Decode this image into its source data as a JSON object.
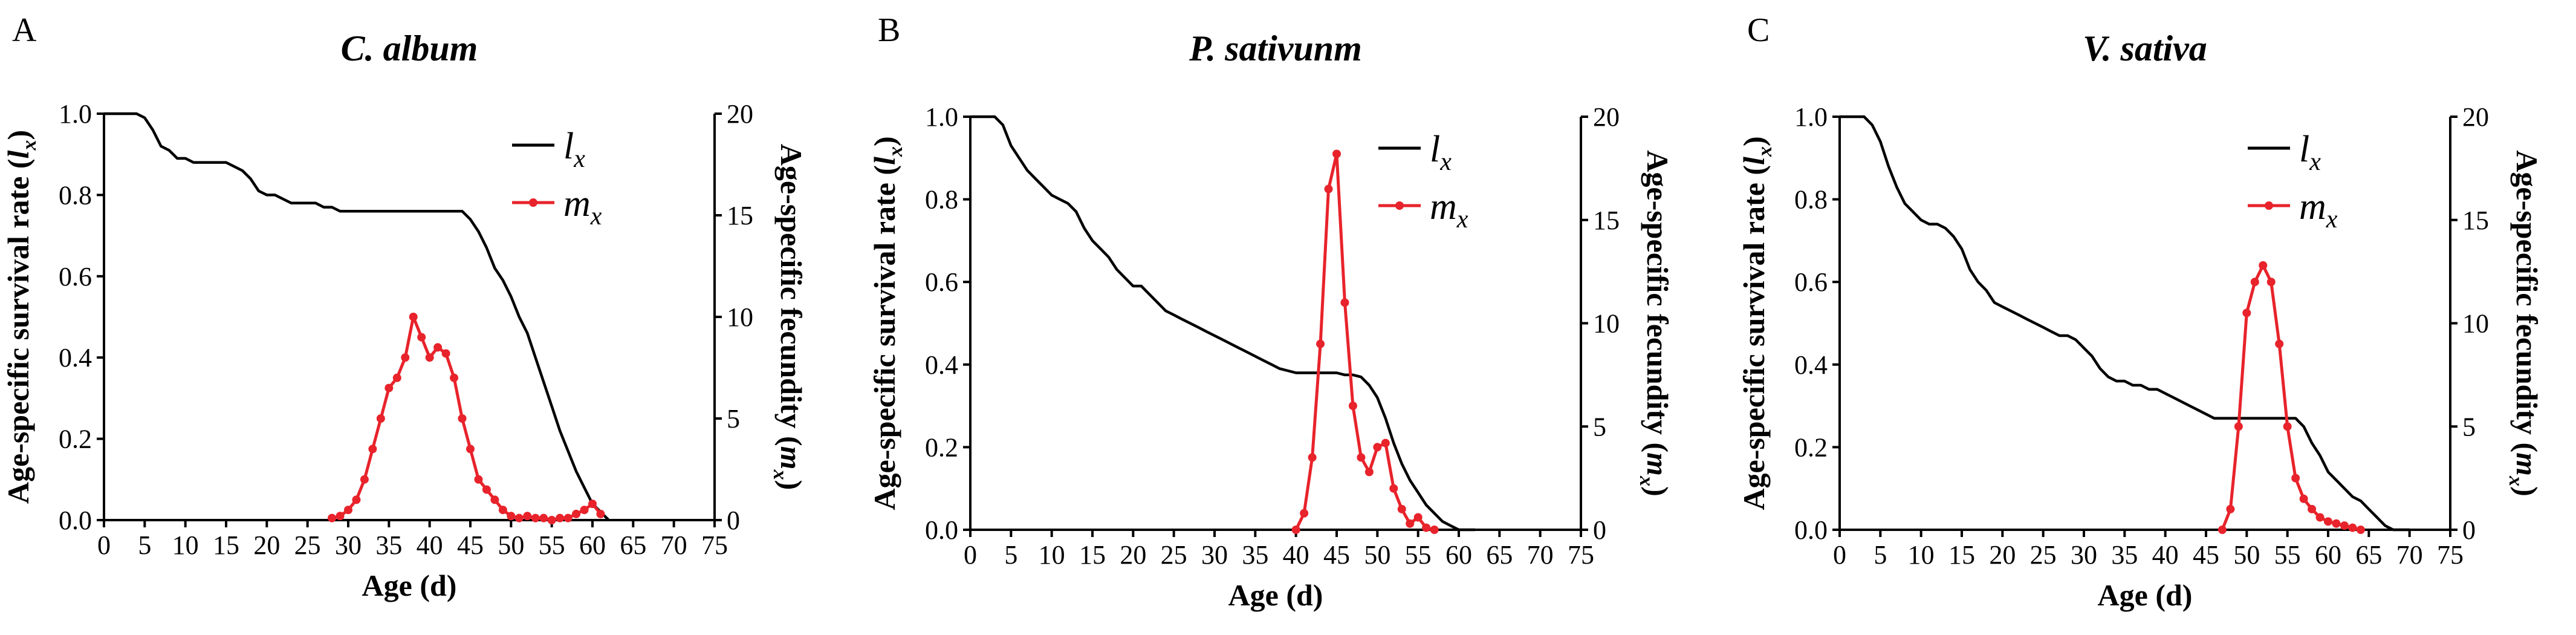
{
  "chart_data": [
    {
      "type": "line",
      "panel": "A",
      "title": "C. album",
      "xlabel": "Age (d)",
      "ylabel": "Age-specific survival rate (l",
      "ylabel_sub": "x",
      "ylabel_close": ")",
      "y2label": "Age-specific fecundity (m",
      "y2label_sub": "x",
      "y2label_close": ")",
      "xlim": [
        0,
        75
      ],
      "ylim": [
        0,
        1
      ],
      "y2lim": [
        0,
        20
      ],
      "xticks": [
        "0",
        "5",
        "10",
        "15",
        "20",
        "25",
        "30",
        "35",
        "40",
        "45",
        "50",
        "55",
        "60",
        "65",
        "70",
        "75"
      ],
      "yticks": [
        "0.0",
        "0.2",
        "0.4",
        "0.6",
        "0.8",
        "1.0"
      ],
      "y2ticks": [
        "0",
        "5",
        "10",
        "15",
        "20"
      ],
      "legend_position": "top-right",
      "series": [
        {
          "name": "l",
          "name_sub": "x",
          "axis": "left",
          "color": "#000000",
          "markers": false,
          "x": [
            0,
            4,
            5,
            6,
            7,
            8,
            9,
            10,
            11,
            12,
            13,
            14,
            15,
            16,
            17,
            18,
            19,
            20,
            21,
            22,
            23,
            24,
            25,
            26,
            27,
            28,
            29,
            30,
            35,
            40,
            44,
            45,
            46,
            47,
            48,
            49,
            50,
            51,
            52,
            53,
            54,
            55,
            56,
            57,
            58,
            59,
            60,
            61,
            62
          ],
          "y": [
            1.0,
            1.0,
            0.99,
            0.96,
            0.92,
            0.91,
            0.89,
            0.89,
            0.88,
            0.88,
            0.88,
            0.88,
            0.88,
            0.87,
            0.86,
            0.84,
            0.81,
            0.8,
            0.8,
            0.79,
            0.78,
            0.78,
            0.78,
            0.78,
            0.77,
            0.77,
            0.76,
            0.76,
            0.76,
            0.76,
            0.76,
            0.74,
            0.71,
            0.67,
            0.62,
            0.59,
            0.55,
            0.5,
            0.46,
            0.4,
            0.34,
            0.28,
            0.22,
            0.17,
            0.12,
            0.08,
            0.04,
            0.02,
            0.0
          ]
        },
        {
          "name": "m",
          "name_sub": "x",
          "axis": "right",
          "color": "#e8232b",
          "markers": true,
          "x": [
            28,
            29,
            30,
            31,
            32,
            33,
            34,
            35,
            36,
            37,
            38,
            39,
            40,
            41,
            42,
            43,
            44,
            45,
            46,
            47,
            48,
            49,
            50,
            51,
            52,
            53,
            54,
            55,
            56,
            57,
            58,
            59,
            60,
            61
          ],
          "y": [
            0.1,
            0.2,
            0.5,
            1.0,
            2.0,
            3.5,
            5.0,
            6.5,
            7.0,
            8.0,
            10.0,
            9.0,
            8.0,
            8.5,
            8.2,
            7.0,
            5.0,
            3.5,
            2.0,
            1.5,
            1.0,
            0.5,
            0.2,
            0.1,
            0.2,
            0.1,
            0.1,
            0.0,
            0.1,
            0.1,
            0.3,
            0.5,
            0.8,
            0.3
          ]
        }
      ]
    },
    {
      "type": "line",
      "panel": "B",
      "title": "P. sativunm",
      "xlabel": "Age (d)",
      "ylabel": "Age-specific survival rate (l",
      "ylabel_sub": "x",
      "ylabel_close": ")",
      "y2label": "Age-specific fecundity (m",
      "y2label_sub": "x",
      "y2label_close": ")",
      "xlim": [
        0,
        75
      ],
      "ylim": [
        0,
        1
      ],
      "y2lim": [
        0,
        20
      ],
      "xticks": [
        "0",
        "5",
        "10",
        "15",
        "20",
        "25",
        "30",
        "35",
        "40",
        "45",
        "50",
        "55",
        "60",
        "65",
        "70",
        "75"
      ],
      "yticks": [
        "0.0",
        "0.2",
        "0.4",
        "0.6",
        "0.8",
        "1.0"
      ],
      "y2ticks": [
        "0",
        "5",
        "10",
        "15",
        "20"
      ],
      "legend_position": "top-right",
      "series": [
        {
          "name": "l",
          "name_sub": "x",
          "axis": "left",
          "color": "#000000",
          "markers": false,
          "x": [
            0,
            3,
            4,
            5,
            6,
            7,
            8,
            9,
            10,
            11,
            12,
            13,
            14,
            15,
            16,
            17,
            18,
            19,
            20,
            21,
            22,
            23,
            24,
            25,
            26,
            27,
            28,
            29,
            30,
            31,
            32,
            33,
            34,
            35,
            36,
            37,
            38,
            39,
            40,
            41,
            42,
            43,
            44,
            45,
            46,
            47,
            48,
            49,
            50,
            51,
            52,
            53,
            54,
            55,
            56,
            57,
            58,
            59,
            60,
            61,
            62
          ],
          "y": [
            1.0,
            1.0,
            0.98,
            0.93,
            0.9,
            0.87,
            0.85,
            0.83,
            0.81,
            0.8,
            0.79,
            0.77,
            0.73,
            0.7,
            0.68,
            0.66,
            0.63,
            0.61,
            0.59,
            0.59,
            0.57,
            0.55,
            0.53,
            0.52,
            0.51,
            0.5,
            0.49,
            0.48,
            0.47,
            0.46,
            0.45,
            0.44,
            0.43,
            0.42,
            0.41,
            0.4,
            0.39,
            0.385,
            0.38,
            0.38,
            0.38,
            0.38,
            0.38,
            0.38,
            0.375,
            0.375,
            0.37,
            0.35,
            0.32,
            0.27,
            0.21,
            0.16,
            0.12,
            0.09,
            0.06,
            0.04,
            0.02,
            0.01,
            0.0,
            0.0,
            0.0
          ]
        },
        {
          "name": "m",
          "name_sub": "x",
          "axis": "right",
          "color": "#e8232b",
          "markers": true,
          "x": [
            40,
            41,
            42,
            43,
            44,
            45,
            46,
            47,
            48,
            49,
            50,
            51,
            52,
            53,
            54,
            55,
            56,
            57
          ],
          "y": [
            0.0,
            0.8,
            3.5,
            9.0,
            16.5,
            18.2,
            11.0,
            6.0,
            3.5,
            2.8,
            4.0,
            4.2,
            2.0,
            1.0,
            0.3,
            0.6,
            0.1,
            0.0
          ]
        }
      ]
    },
    {
      "type": "line",
      "panel": "C",
      "title": "V. sativa",
      "xlabel": "Age (d)",
      "ylabel": "Age-specific survival rate (l",
      "ylabel_sub": "x",
      "ylabel_close": ")",
      "y2label": "Age-specific fecundity (m",
      "y2label_sub": "x",
      "y2label_close": ")",
      "xlim": [
        0,
        75
      ],
      "ylim": [
        0,
        1
      ],
      "y2lim": [
        0,
        20
      ],
      "xticks": [
        "0",
        "5",
        "10",
        "15",
        "20",
        "25",
        "30",
        "35",
        "40",
        "45",
        "50",
        "55",
        "60",
        "65",
        "70",
        "75"
      ],
      "yticks": [
        "0.0",
        "0.2",
        "0.4",
        "0.6",
        "0.8",
        "1.0"
      ],
      "y2ticks": [
        "0",
        "5",
        "10",
        "15",
        "20"
      ],
      "legend_position": "top-right",
      "series": [
        {
          "name": "l",
          "name_sub": "x",
          "axis": "left",
          "color": "#000000",
          "markers": false,
          "x": [
            0,
            3,
            4,
            5,
            6,
            7,
            8,
            9,
            10,
            11,
            12,
            13,
            14,
            15,
            16,
            17,
            18,
            19,
            20,
            21,
            22,
            23,
            24,
            25,
            26,
            27,
            28,
            29,
            30,
            31,
            32,
            33,
            34,
            35,
            36,
            37,
            38,
            39,
            40,
            41,
            42,
            43,
            44,
            45,
            46,
            47,
            48,
            49,
            50,
            51,
            52,
            53,
            54,
            55,
            56,
            57,
            58,
            59,
            60,
            61,
            62,
            63,
            64,
            65,
            66,
            67,
            68,
            69,
            70
          ],
          "y": [
            1.0,
            1.0,
            0.98,
            0.94,
            0.88,
            0.83,
            0.79,
            0.77,
            0.75,
            0.74,
            0.74,
            0.73,
            0.71,
            0.68,
            0.63,
            0.6,
            0.58,
            0.55,
            0.54,
            0.53,
            0.52,
            0.51,
            0.5,
            0.49,
            0.48,
            0.47,
            0.47,
            0.46,
            0.44,
            0.42,
            0.39,
            0.37,
            0.36,
            0.36,
            0.35,
            0.35,
            0.34,
            0.34,
            0.33,
            0.32,
            0.31,
            0.3,
            0.29,
            0.28,
            0.27,
            0.27,
            0.27,
            0.27,
            0.27,
            0.27,
            0.27,
            0.27,
            0.27,
            0.27,
            0.27,
            0.25,
            0.21,
            0.18,
            0.14,
            0.12,
            0.1,
            0.08,
            0.07,
            0.05,
            0.03,
            0.01,
            0.0,
            0.0,
            0.0
          ]
        },
        {
          "name": "m",
          "name_sub": "x",
          "axis": "right",
          "color": "#e8232b",
          "markers": true,
          "x": [
            47,
            48,
            49,
            50,
            51,
            52,
            53,
            54,
            55,
            56,
            57,
            58,
            59,
            60,
            61,
            62,
            63,
            64
          ],
          "y": [
            0.0,
            1.0,
            5.0,
            10.5,
            12.0,
            12.8,
            12.0,
            9.0,
            5.0,
            2.5,
            1.5,
            1.0,
            0.6,
            0.4,
            0.3,
            0.2,
            0.1,
            0.0
          ]
        }
      ]
    }
  ]
}
